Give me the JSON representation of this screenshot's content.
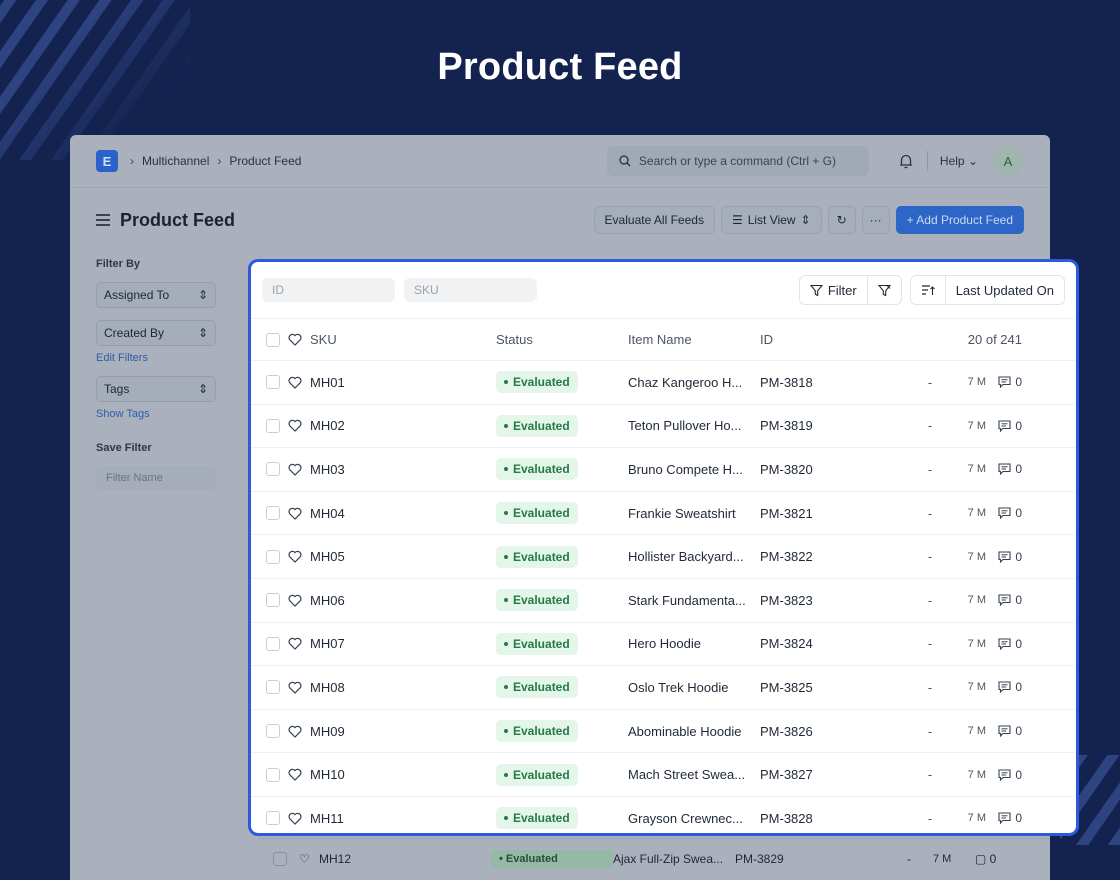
{
  "hero_title": "Product Feed",
  "app": {
    "breadcrumb": [
      "Multichannel",
      "Product Feed"
    ],
    "logo_letter": "E",
    "search_placeholder": "Search or type a command (Ctrl + G)",
    "help_label": "Help",
    "avatar_letter": "A",
    "page_title": "Product Feed",
    "actions": {
      "evaluate": "Evaluate All Feeds",
      "list_view": "List View",
      "more": "···",
      "add": "+ Add Product Feed"
    },
    "sidebar": {
      "filter_by": "Filter By",
      "assigned_to": "Assigned To",
      "created_by": "Created By",
      "edit_filters": "Edit Filters",
      "tags": "Tags",
      "show_tags": "Show Tags",
      "save_filter": "Save Filter",
      "filter_name_placeholder": "Filter Name"
    },
    "ghost_row": {
      "sku": "MH12",
      "status": "Evaluated",
      "item": "Ajax Full-Zip Swea...",
      "id": "PM-3829",
      "dash": "-",
      "modified": "7 M",
      "comments": "0"
    }
  },
  "list": {
    "id_placeholder": "ID",
    "sku_placeholder": "SKU",
    "filter_label": "Filter",
    "sort_label": "Last Updated On",
    "columns": {
      "sku": "SKU",
      "status": "Status",
      "item_name": "Item Name",
      "id": "ID"
    },
    "count": "20 of 241",
    "rows": [
      {
        "sku": "MH01",
        "status": "Evaluated",
        "item": "Chaz Kangeroo H...",
        "id": "PM-3818",
        "dash": "-",
        "modified": "7 M",
        "comments": "0"
      },
      {
        "sku": "MH02",
        "status": "Evaluated",
        "item": "Teton Pullover Ho...",
        "id": "PM-3819",
        "dash": "-",
        "modified": "7 M",
        "comments": "0"
      },
      {
        "sku": "MH03",
        "status": "Evaluated",
        "item": "Bruno Compete H...",
        "id": "PM-3820",
        "dash": "-",
        "modified": "7 M",
        "comments": "0"
      },
      {
        "sku": "MH04",
        "status": "Evaluated",
        "item": "Frankie Sweatshirt",
        "id": "PM-3821",
        "dash": "-",
        "modified": "7 M",
        "comments": "0"
      },
      {
        "sku": "MH05",
        "status": "Evaluated",
        "item": "Hollister Backyard...",
        "id": "PM-3822",
        "dash": "-",
        "modified": "7 M",
        "comments": "0"
      },
      {
        "sku": "MH06",
        "status": "Evaluated",
        "item": "Stark Fundamenta...",
        "id": "PM-3823",
        "dash": "-",
        "modified": "7 M",
        "comments": "0"
      },
      {
        "sku": "MH07",
        "status": "Evaluated",
        "item": "Hero Hoodie",
        "id": "PM-3824",
        "dash": "-",
        "modified": "7 M",
        "comments": "0"
      },
      {
        "sku": "MH08",
        "status": "Evaluated",
        "item": "Oslo Trek Hoodie",
        "id": "PM-3825",
        "dash": "-",
        "modified": "7 M",
        "comments": "0"
      },
      {
        "sku": "MH09",
        "status": "Evaluated",
        "item": "Abominable Hoodie",
        "id": "PM-3826",
        "dash": "-",
        "modified": "7 M",
        "comments": "0"
      },
      {
        "sku": "MH10",
        "status": "Evaluated",
        "item": "Mach Street Swea...",
        "id": "PM-3827",
        "dash": "-",
        "modified": "7 M",
        "comments": "0"
      },
      {
        "sku": "MH11",
        "status": "Evaluated",
        "item": "Grayson Crewnec...",
        "id": "PM-3828",
        "dash": "-",
        "modified": "7 M",
        "comments": "0"
      }
    ]
  },
  "colors": {
    "background": "#13224f",
    "accent": "#2c59dd",
    "status_green": "#267a46"
  }
}
